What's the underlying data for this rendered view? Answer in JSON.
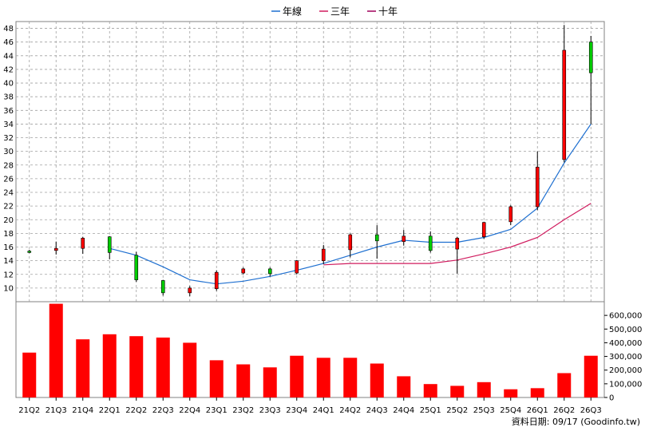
{
  "chart_data": {
    "type": "candlestick",
    "categories": [
      "21Q2",
      "21Q3",
      "21Q4",
      "22Q1",
      "22Q2",
      "22Q3",
      "22Q4",
      "23Q1",
      "23Q2",
      "23Q3",
      "23Q4",
      "24Q1",
      "24Q2",
      "24Q3",
      "24Q4",
      "25Q1",
      "25Q2",
      "25Q3",
      "25Q4",
      "26Q1",
      "26Q2",
      "26Q3"
    ],
    "candles": [
      {
        "o": 15.4,
        "h": 15.6,
        "l": 15.1,
        "c": 15.2
      },
      {
        "o": 15.5,
        "h": 16.8,
        "l": 14.9,
        "c": 15.8
      },
      {
        "o": 15.8,
        "h": 17.5,
        "l": 15.0,
        "c": 17.3
      },
      {
        "o": 17.5,
        "h": 17.6,
        "l": 14.2,
        "c": 15.2
      },
      {
        "o": 14.8,
        "h": 15.3,
        "l": 10.9,
        "c": 11.2
      },
      {
        "o": 11.1,
        "h": 11.2,
        "l": 8.9,
        "c": 9.3
      },
      {
        "o": 9.3,
        "h": 10.3,
        "l": 8.8,
        "c": 10.0
      },
      {
        "o": 9.9,
        "h": 12.6,
        "l": 9.6,
        "c": 12.3
      },
      {
        "o": 12.2,
        "h": 13.0,
        "l": 12.0,
        "c": 12.8
      },
      {
        "o": 12.8,
        "h": 13.0,
        "l": 11.7,
        "c": 12.1
      },
      {
        "o": 12.2,
        "h": 14.1,
        "l": 12.0,
        "c": 14.0
      },
      {
        "o": 14.0,
        "h": 16.3,
        "l": 13.5,
        "c": 15.7
      },
      {
        "o": 15.6,
        "h": 18.0,
        "l": 14.5,
        "c": 17.8
      },
      {
        "o": 17.8,
        "h": 19.2,
        "l": 14.3,
        "c": 16.9
      },
      {
        "o": 16.8,
        "h": 18.5,
        "l": 16.2,
        "c": 17.6
      },
      {
        "o": 17.6,
        "h": 18.3,
        "l": 15.2,
        "c": 15.5
      },
      {
        "o": 15.7,
        "h": 17.5,
        "l": 12.1,
        "c": 17.3
      },
      {
        "o": 17.5,
        "h": 19.7,
        "l": 17.2,
        "c": 19.6
      },
      {
        "o": 19.7,
        "h": 22.1,
        "l": 19.2,
        "c": 21.9
      },
      {
        "o": 21.9,
        "h": 30.0,
        "l": 21.4,
        "c": 27.7
      },
      {
        "o": 28.8,
        "h": 48.5,
        "l": 28.4,
        "c": 44.8
      },
      {
        "o": 46.0,
        "h": 46.9,
        "l": 34.0,
        "c": 41.5
      }
    ],
    "annual_line": [
      null,
      null,
      null,
      15.8,
      14.8,
      13.1,
      11.2,
      10.6,
      11.0,
      11.7,
      12.6,
      13.6,
      14.8,
      16.0,
      17.0,
      16.7,
      16.7,
      17.4,
      18.6,
      21.7,
      28.3,
      34.0
    ],
    "three_year_line": [
      null,
      null,
      null,
      null,
      null,
      null,
      null,
      null,
      null,
      null,
      null,
      13.4,
      13.6,
      13.6,
      13.6,
      13.6,
      14.1,
      15.0,
      16.0,
      17.4,
      20.0,
      22.4
    ],
    "ten_year_line": [],
    "volume": [
      328000,
      685000,
      425000,
      462000,
      448000,
      438000,
      400000,
      272000,
      242000,
      220000,
      305000,
      290000,
      290000,
      248000,
      155000,
      98000,
      85000,
      112000,
      60000,
      68000,
      178000,
      305000
    ],
    "price_ylim": [
      8,
      49
    ],
    "price_ticks": [
      10,
      12,
      14,
      16,
      18,
      20,
      22,
      24,
      26,
      28,
      30,
      32,
      34,
      36,
      38,
      40,
      42,
      44,
      46,
      48
    ],
    "volume_ylim": [
      0,
      700000
    ],
    "volume_ticks": [
      0,
      100000,
      200000,
      300000,
      400000,
      500000,
      600000
    ],
    "volume_tick_labels": [
      "0",
      "100,000",
      "200,000",
      "300,000",
      "400,000",
      "500,000",
      "600,000"
    ],
    "legend": [
      "年線",
      "三年",
      "十年"
    ],
    "legend_placement": "top-center",
    "grid": true
  },
  "colors": {
    "up": "#ff0000",
    "down": "#00cc00",
    "candle_border": "#000000",
    "annual_line": "#1e6fd0",
    "three_year_line": "#d01b5e",
    "ten_year_line": "#a0005a",
    "volume_bar": "#ff0000",
    "grid": "#a0a0a0"
  },
  "source_note": "資料日期: 09/17  (Goodinfo.tw)"
}
